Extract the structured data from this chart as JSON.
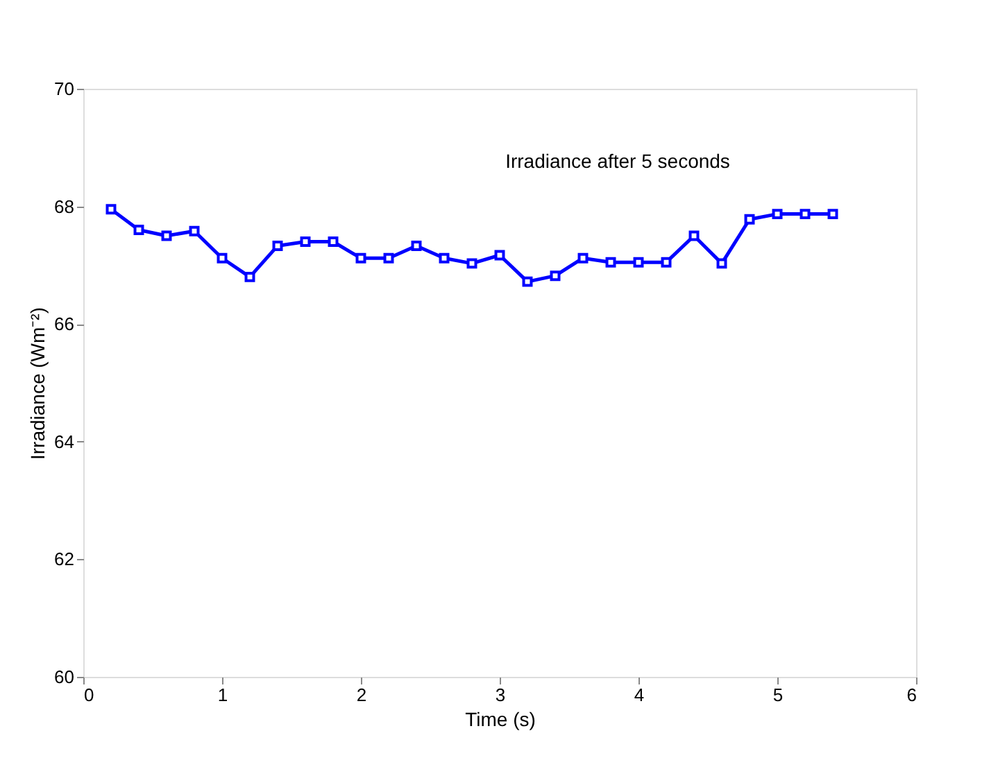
{
  "chart_data": {
    "type": "line",
    "title": "Irradiance after 5 seconds",
    "xlabel": "Time (s)",
    "ylabel": "Irradiance (Wm⁻²)",
    "x": [
      0.2,
      0.4,
      0.6,
      0.8,
      1.0,
      1.2,
      1.4,
      1.6,
      1.8,
      2.0,
      2.2,
      2.4,
      2.6,
      2.8,
      3.0,
      3.2,
      3.4,
      3.6,
      3.8,
      4.0,
      4.2,
      4.4,
      4.6,
      4.8,
      5.0,
      5.2,
      5.4
    ],
    "series": [
      {
        "color": "#0000ff",
        "values": [
          67.95,
          67.6,
          67.5,
          67.58,
          67.12,
          66.8,
          67.33,
          67.4,
          67.4,
          67.12,
          67.12,
          67.33,
          67.12,
          67.03,
          67.17,
          66.72,
          66.82,
          67.12,
          67.05,
          67.05,
          67.05,
          67.5,
          67.03,
          67.78,
          67.87,
          67.87,
          67.87
        ]
      }
    ],
    "xlim": [
      0,
      6
    ],
    "xticks": [
      0,
      1,
      2,
      3,
      4,
      5,
      6
    ],
    "ylim": [
      60,
      70
    ],
    "yticks": [
      60,
      62,
      64,
      66,
      68,
      70
    ],
    "grid": false,
    "marker": "square",
    "line_style": "solid"
  }
}
